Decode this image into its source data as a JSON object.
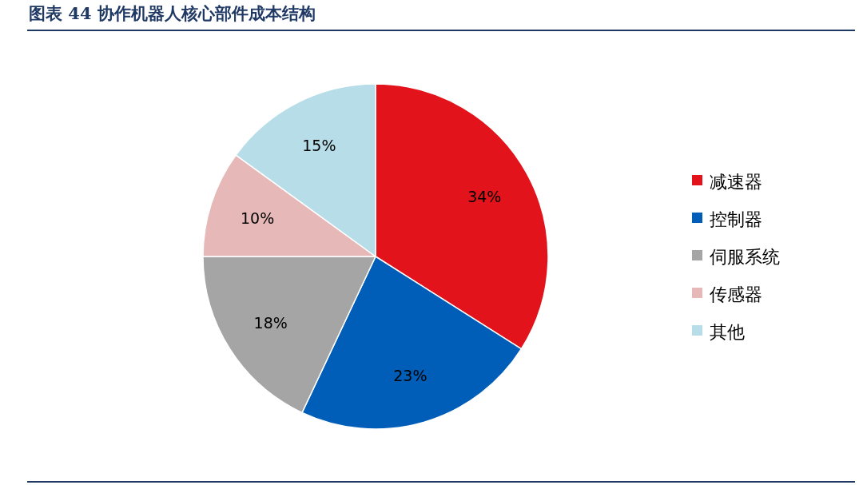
{
  "chart_data": {
    "type": "pie",
    "title": "图表 44   协作机器人核心部件成本结构",
    "categories": [
      "减速器",
      "控制器",
      "伺服系统",
      "传感器",
      "其他"
    ],
    "values": [
      34,
      23,
      18,
      10,
      15
    ],
    "colors": [
      "#e3131b",
      "#005eb8",
      "#a5a5a5",
      "#e6b9b8",
      "#b7dee8"
    ],
    "value_labels": [
      "34%",
      "23%",
      "18%",
      "10%",
      "15%"
    ],
    "legend": "right"
  }
}
